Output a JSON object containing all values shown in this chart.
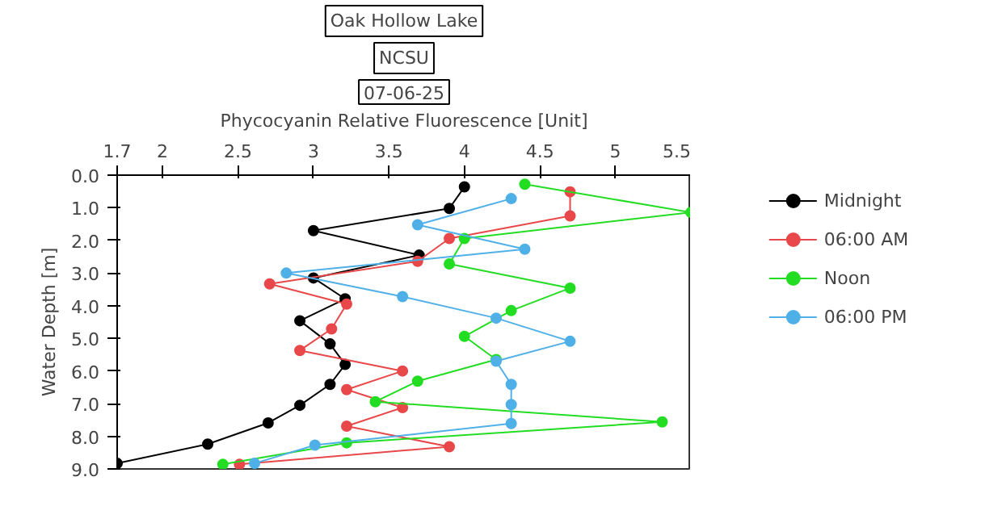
{
  "chart_data": {
    "type": "line",
    "title": "Oak Hollow Lake",
    "subtitle": "NCSU",
    "annotations": [
      "07-06-25"
    ],
    "xlabel": "Phycocyanin Relative Fluorescence [Unit]",
    "ylabel": "Water Depth [m]",
    "xlim": [
      1.7,
      5.5
    ],
    "xticks": [
      1.7,
      2,
      2.5,
      3,
      3.5,
      4,
      4.5,
      5,
      5.5
    ],
    "ylim": [
      9,
      0
    ],
    "yticks": [
      {
        "value": 0,
        "label": "0.0"
      },
      {
        "value": 1,
        "label": "1.0"
      },
      {
        "value": 2,
        "label": "2.0"
      },
      {
        "value": 3,
        "label": "3.0"
      },
      {
        "value": 4,
        "label": "4.0"
      },
      {
        "value": 5,
        "label": "5.0"
      },
      {
        "value": 6,
        "label": "6.0"
      },
      {
        "value": 7,
        "label": "7.0"
      },
      {
        "value": 8,
        "label": "8.0"
      },
      {
        "value": 9,
        "label": "9.0"
      }
    ],
    "grid": false,
    "legend": "top right",
    "marker": "circle",
    "line_style": "solid",
    "series": [
      {
        "name": "Midnight",
        "color": "#000000",
        "x": [
          4.0,
          3.9,
          3.0,
          3.7,
          3.0,
          3.21,
          2.91,
          3.11,
          3.21,
          3.11,
          2.91,
          2.7,
          2.3,
          1.7
        ],
        "values": [
          0.36,
          1.02,
          1.7,
          2.45,
          3.15,
          3.79,
          4.46,
          5.17,
          5.8,
          6.41,
          7.05,
          7.59,
          8.24,
          8.83
        ]
      },
      {
        "name": "06:00 AM",
        "color": "#e8484a",
        "x": [
          4.7,
          4.7,
          3.9,
          3.69,
          2.71,
          3.22,
          3.12,
          2.91,
          3.59,
          3.22,
          3.59,
          3.22,
          3.9,
          2.51
        ],
        "values": [
          0.51,
          1.25,
          1.94,
          2.64,
          3.33,
          3.95,
          4.71,
          5.37,
          6.0,
          6.57,
          7.12,
          7.69,
          8.32,
          8.86
        ]
      },
      {
        "name": "Noon",
        "color": "#22dd22",
        "x": [
          4.4,
          5.5,
          4.0,
          3.9,
          4.7,
          4.31,
          4.0,
          4.21,
          3.69,
          3.41,
          5.31,
          3.22,
          2.4
        ],
        "values": [
          0.28,
          1.14,
          1.94,
          2.72,
          3.46,
          4.15,
          4.94,
          5.65,
          6.31,
          6.94,
          7.56,
          8.2,
          8.86
        ]
      },
      {
        "name": "06:00 PM",
        "color": "#4fb0e8",
        "x": [
          4.31,
          3.69,
          4.4,
          2.82,
          3.59,
          4.21,
          4.7,
          4.21,
          4.31,
          4.31,
          4.31,
          3.01,
          2.61
        ],
        "values": [
          0.72,
          1.52,
          2.27,
          3.0,
          3.72,
          4.38,
          5.09,
          5.7,
          6.41,
          7.03,
          7.61,
          8.27,
          8.83
        ]
      }
    ]
  }
}
